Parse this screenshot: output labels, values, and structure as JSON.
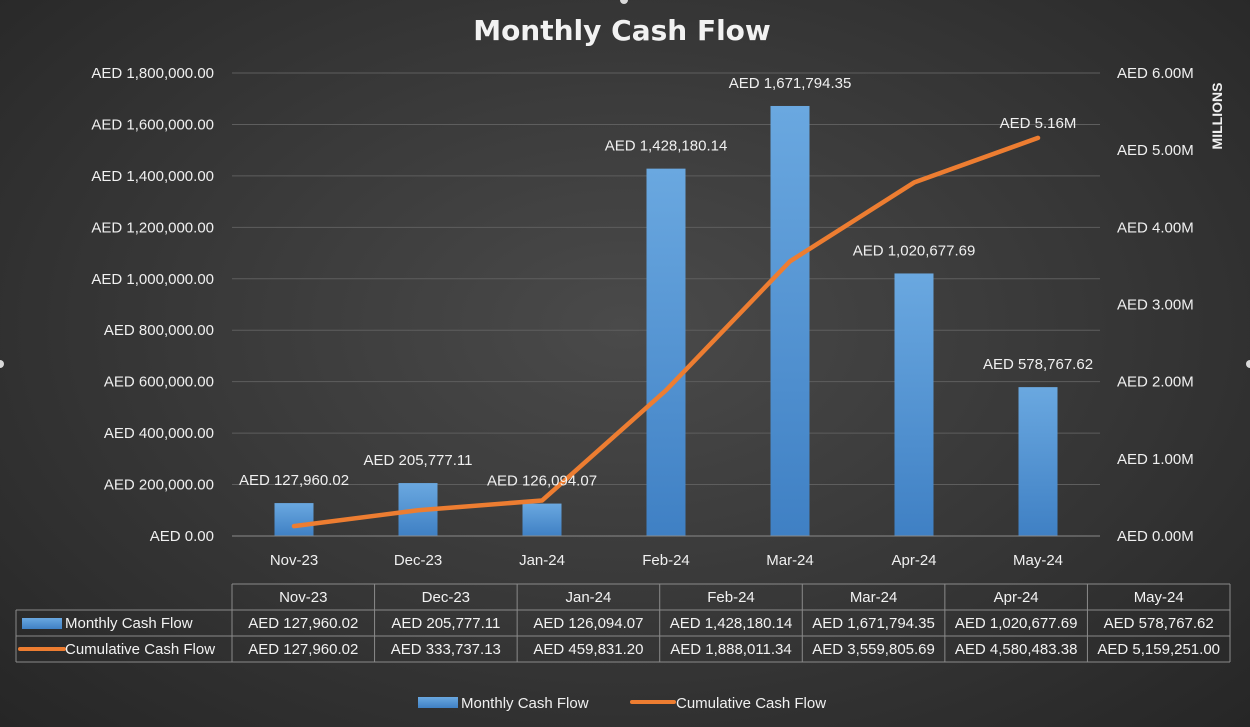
{
  "chart_data": {
    "type": "bar",
    "title": "Monthly Cash Flow",
    "categories": [
      "Nov-23",
      "Dec-23",
      "Jan-24",
      "Feb-24",
      "Mar-24",
      "Apr-24",
      "May-24"
    ],
    "series": [
      {
        "name": "Monthly Cash Flow",
        "type": "bar",
        "axis": "left",
        "color": "#5b9bd5",
        "values": [
          127960.02,
          205777.11,
          126094.07,
          1428180.14,
          1671794.35,
          1020677.69,
          578767.62
        ],
        "labels": [
          "AED 127,960.02",
          "AED 205,777.11",
          "AED 126,094.07",
          "AED 1,428,180.14",
          "AED 1,671,794.35",
          "AED 1,020,677.69",
          "AED 578,767.62"
        ],
        "table_values": [
          "AED 127,960.02",
          "AED 205,777.11",
          "AED 126,094.07",
          "AED 1,428,180.14",
          "AED 1,671,794.35",
          "AED 1,020,677.69",
          "AED 578,767.62"
        ]
      },
      {
        "name": "Cumulative Cash Flow",
        "type": "line",
        "axis": "right",
        "color": "#ed7d31",
        "values": [
          127960.02,
          333737.13,
          459831.2,
          1888011.34,
          3559805.69,
          4580483.38,
          5159251.0
        ],
        "labels": [
          "",
          "",
          "",
          "",
          "",
          "",
          "AED 5.16M"
        ],
        "table_values": [
          "AED 127,960.02",
          "AED 333,737.13",
          "AED 459,831.20",
          "AED 1,888,011.34",
          "AED 3,559,805.69",
          "AED 4,580,483.38",
          "AED 5,159,251.00"
        ]
      }
    ],
    "y_left": {
      "ylim": [
        0,
        1800000
      ],
      "ticks": [
        0,
        200000,
        400000,
        600000,
        800000,
        1000000,
        1200000,
        1400000,
        1600000,
        1800000
      ],
      "tick_labels": [
        "AED 0.00",
        "AED 200,000.00",
        "AED 400,000.00",
        "AED 600,000.00",
        "AED 800,000.00",
        "AED 1,000,000.00",
        "AED 1,200,000.00",
        "AED 1,400,000.00",
        "AED 1,600,000.00",
        "AED 1,800,000.00"
      ]
    },
    "y_right": {
      "ylim": [
        0,
        6000000
      ],
      "ticks": [
        0,
        1000000,
        2000000,
        3000000,
        4000000,
        5000000,
        6000000
      ],
      "tick_labels": [
        "AED 0.00M",
        "AED 1.00M",
        "AED 2.00M",
        "AED 3.00M",
        "AED 4.00M",
        "AED 5.00M",
        "AED 6.00M"
      ],
      "unit_label": "MILLIONS"
    },
    "grid": true,
    "data_table": true,
    "legend": "bottom"
  }
}
